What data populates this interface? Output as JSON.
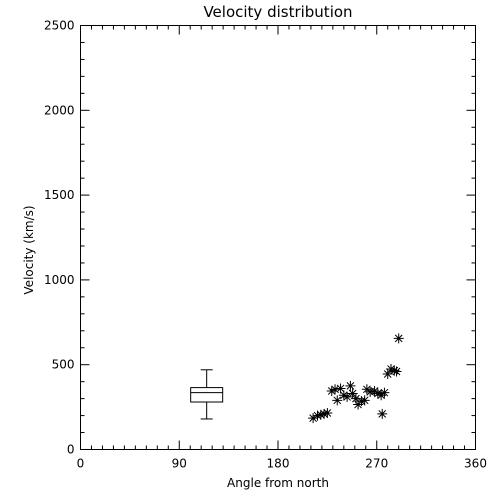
{
  "chart_data": {
    "type": "scatter",
    "title": "Velocity distribution",
    "xlabel": "Angle from north",
    "ylabel": "Velocity (km/s)",
    "xlim": [
      0,
      360
    ],
    "ylim": [
      0,
      2500
    ],
    "xticks": [
      0,
      90,
      180,
      270,
      360
    ],
    "yticks": [
      0,
      500,
      1000,
      1500,
      2000,
      2500
    ],
    "x_minor_step": 10,
    "y_minor_step": 100,
    "grid": false,
    "marker": "asterisk",
    "points": [
      {
        "x": 212,
        "y": 185
      },
      {
        "x": 216,
        "y": 200
      },
      {
        "x": 219,
        "y": 205
      },
      {
        "x": 222,
        "y": 210
      },
      {
        "x": 225,
        "y": 215
      },
      {
        "x": 229,
        "y": 345
      },
      {
        "x": 232,
        "y": 355
      },
      {
        "x": 234,
        "y": 290
      },
      {
        "x": 237,
        "y": 360
      },
      {
        "x": 240,
        "y": 320
      },
      {
        "x": 243,
        "y": 310
      },
      {
        "x": 246,
        "y": 375
      },
      {
        "x": 248,
        "y": 330
      },
      {
        "x": 251,
        "y": 300
      },
      {
        "x": 253,
        "y": 265
      },
      {
        "x": 256,
        "y": 285
      },
      {
        "x": 259,
        "y": 290
      },
      {
        "x": 261,
        "y": 355
      },
      {
        "x": 264,
        "y": 340
      },
      {
        "x": 268,
        "y": 345
      },
      {
        "x": 271,
        "y": 330
      },
      {
        "x": 274,
        "y": 320
      },
      {
        "x": 277,
        "y": 335
      },
      {
        "x": 275,
        "y": 210
      },
      {
        "x": 280,
        "y": 445
      },
      {
        "x": 283,
        "y": 475
      },
      {
        "x": 286,
        "y": 465
      },
      {
        "x": 288,
        "y": 460
      },
      {
        "x": 290,
        "y": 655
      }
    ],
    "boxplot": {
      "x": 115,
      "whisker_low": 180,
      "q1": 280,
      "median": 335,
      "q3": 365,
      "whisker_high": 470
    }
  }
}
